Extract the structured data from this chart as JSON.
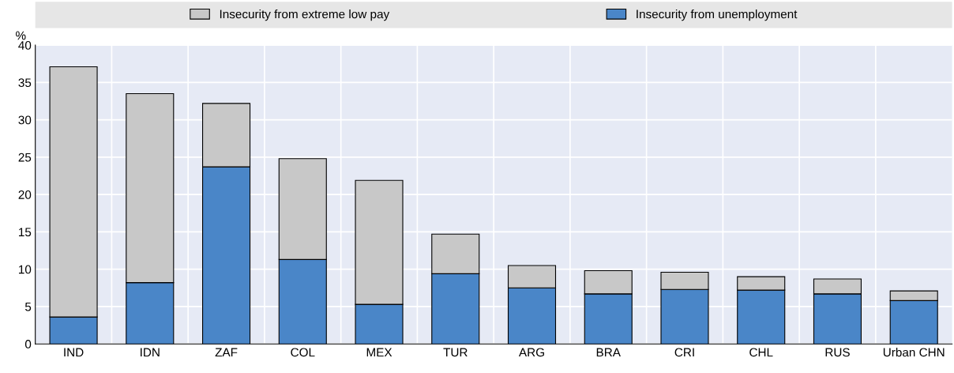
{
  "chart_data": {
    "type": "bar",
    "stacked": true,
    "ylabel": "%",
    "categories": [
      "IND",
      "IDN",
      "ZAF",
      "COL",
      "MEX",
      "TUR",
      "ARG",
      "BRA",
      "CRI",
      "CHL",
      "RUS",
      "Urban CHN"
    ],
    "series": [
      {
        "name": "Insecurity from unemployment",
        "color": "#4a86c8",
        "values": [
          3.6,
          8.2,
          23.7,
          11.3,
          5.3,
          9.4,
          7.5,
          6.7,
          7.3,
          7.2,
          6.7,
          5.8
        ]
      },
      {
        "name": "Insecurity from extreme low pay",
        "color": "#c8c8c8",
        "values": [
          33.5,
          25.3,
          8.5,
          13.5,
          16.6,
          5.3,
          3.0,
          3.1,
          2.3,
          1.8,
          2.0,
          1.3
        ]
      }
    ],
    "ylim": [
      0,
      40
    ],
    "yticks": [
      0,
      5,
      10,
      15,
      20,
      25,
      30,
      35,
      40
    ],
    "grid": true,
    "legend": "top"
  }
}
